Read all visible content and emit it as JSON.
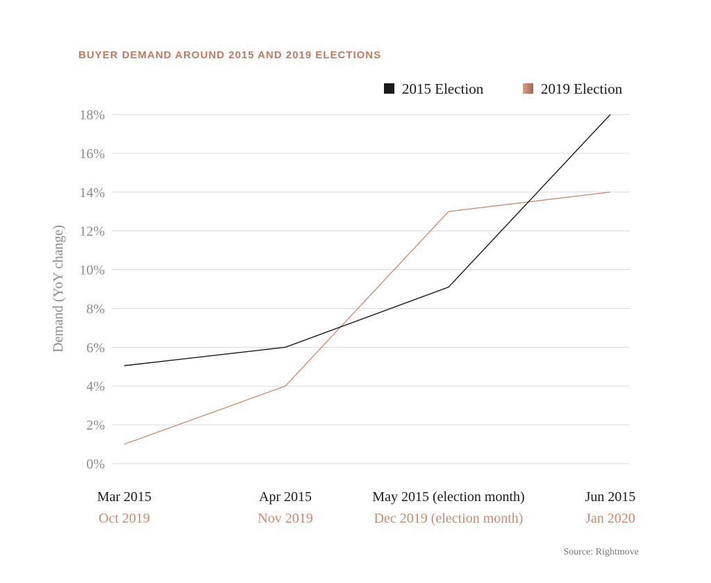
{
  "chart_data": {
    "type": "line",
    "title": "BUYER DEMAND AROUND 2015 AND 2019 ELECTIONS",
    "ylabel": "Demand (YoY change)",
    "xlabel": "",
    "ylim": [
      0,
      18
    ],
    "yticks": [
      0,
      2,
      4,
      6,
      8,
      10,
      12,
      14,
      16,
      18
    ],
    "ytick_suffix": "%",
    "grid": "horizontal",
    "legend_position": "top-right",
    "categories_primary": [
      "Mar 2015",
      "Apr 2015",
      "May 2015 (election month)",
      "Jun 2015"
    ],
    "categories_secondary": [
      "Oct 2019",
      "Nov 2019",
      "Dec 2019 (election month)",
      "Jan 2020"
    ],
    "series": [
      {
        "name": "2015 Election",
        "color": "#1a1a1a",
        "values": [
          5.05,
          6.0,
          9.1,
          18.0
        ]
      },
      {
        "name": "2019 Election",
        "color": "#c8896e",
        "values": [
          1.0,
          4.0,
          13.0,
          14.0
        ]
      }
    ],
    "source": "Source: Rightmove"
  },
  "colors": {
    "title": "#c07a5c",
    "grid": "#d9d9d9",
    "tick": "#8a8a8a",
    "primary_category": "#1a1a1a",
    "secondary_category": "#c8896e",
    "legend_swatch_2019_start": "#d9a08a",
    "legend_swatch_2019_end": "#a8654a"
  }
}
